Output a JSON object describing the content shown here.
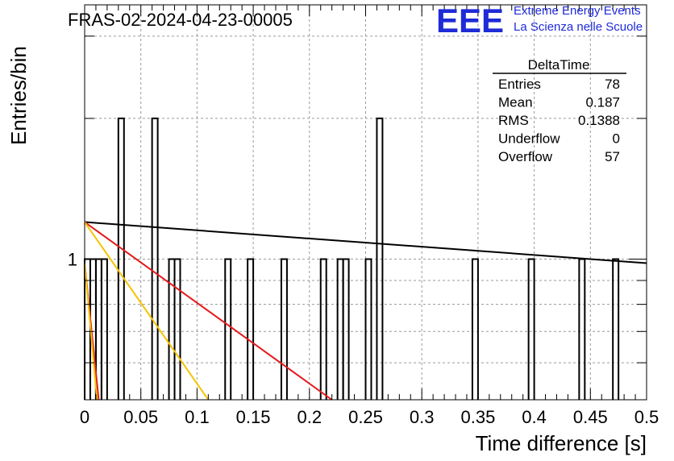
{
  "chart_data": {
    "type": "bar",
    "title": "FRAS-02-2024-04-23-00005",
    "xlabel": "Time difference [s]",
    "ylabel": "Entries/bin",
    "xlim": [
      0,
      0.5
    ],
    "ylim_log": [
      0.5,
      3.5
    ],
    "log_y": true,
    "grid": true,
    "x_tick_labels": [
      "0",
      "0.05",
      "0.1",
      "0.15",
      "0.2",
      "0.25",
      "0.3",
      "0.35",
      "0.4",
      "0.45",
      "0.5"
    ],
    "x_ticks": [
      0,
      0.05,
      0.1,
      0.15,
      0.2,
      0.25,
      0.3,
      0.35,
      0.4,
      0.45,
      0.5
    ],
    "y_tick_labels": [
      "1"
    ],
    "y_ticks": [
      1
    ],
    "bin_width": 0.005,
    "bins": [
      {
        "x": 0.0,
        "count": 1
      },
      {
        "x": 0.005,
        "count": 1
      },
      {
        "x": 0.01,
        "count": 1
      },
      {
        "x": 0.015,
        "count": 1
      },
      {
        "x": 0.03,
        "count": 2
      },
      {
        "x": 0.06,
        "count": 2
      },
      {
        "x": 0.075,
        "count": 1
      },
      {
        "x": 0.08,
        "count": 1
      },
      {
        "x": 0.125,
        "count": 1
      },
      {
        "x": 0.145,
        "count": 1
      },
      {
        "x": 0.175,
        "count": 1
      },
      {
        "x": 0.21,
        "count": 1
      },
      {
        "x": 0.225,
        "count": 1
      },
      {
        "x": 0.23,
        "count": 1
      },
      {
        "x": 0.25,
        "count": 1
      },
      {
        "x": 0.26,
        "count": 2
      },
      {
        "x": 0.345,
        "count": 1
      },
      {
        "x": 0.395,
        "count": 1
      },
      {
        "x": 0.44,
        "count": 1
      },
      {
        "x": 0.47,
        "count": 1
      }
    ],
    "fit_lines": [
      {
        "color": "#000000",
        "points": [
          [
            0,
            1.2
          ],
          [
            0.5,
            0.98
          ]
        ]
      },
      {
        "color": "#e41a1c",
        "points": [
          [
            0,
            1.2
          ],
          [
            0.22,
            0.5
          ]
        ]
      },
      {
        "color": "#f5c400",
        "points": [
          [
            0,
            1.2
          ],
          [
            0.11,
            0.5
          ]
        ]
      },
      {
        "color": "#e41a1c",
        "points": [
          [
            0,
            0.98
          ],
          [
            0.0125,
            0.5
          ]
        ]
      },
      {
        "color": "#f5c400",
        "points": [
          [
            0,
            0.98
          ],
          [
            0.011,
            0.5
          ]
        ]
      }
    ],
    "stats": {
      "title": "DeltaTime",
      "rows": [
        {
          "label": "Entries",
          "value": "78"
        },
        {
          "label": "Mean",
          "value": "0.187"
        },
        {
          "label": "RMS",
          "value": "0.1388"
        },
        {
          "label": "Underflow",
          "value": "0"
        },
        {
          "label": "Overflow",
          "value": "57"
        }
      ]
    }
  },
  "logo": {
    "text": "EEE",
    "line1": "Extreme Energy Events",
    "line2": "La Scienza nelle Scuole",
    "color": "#1f2bd6"
  }
}
